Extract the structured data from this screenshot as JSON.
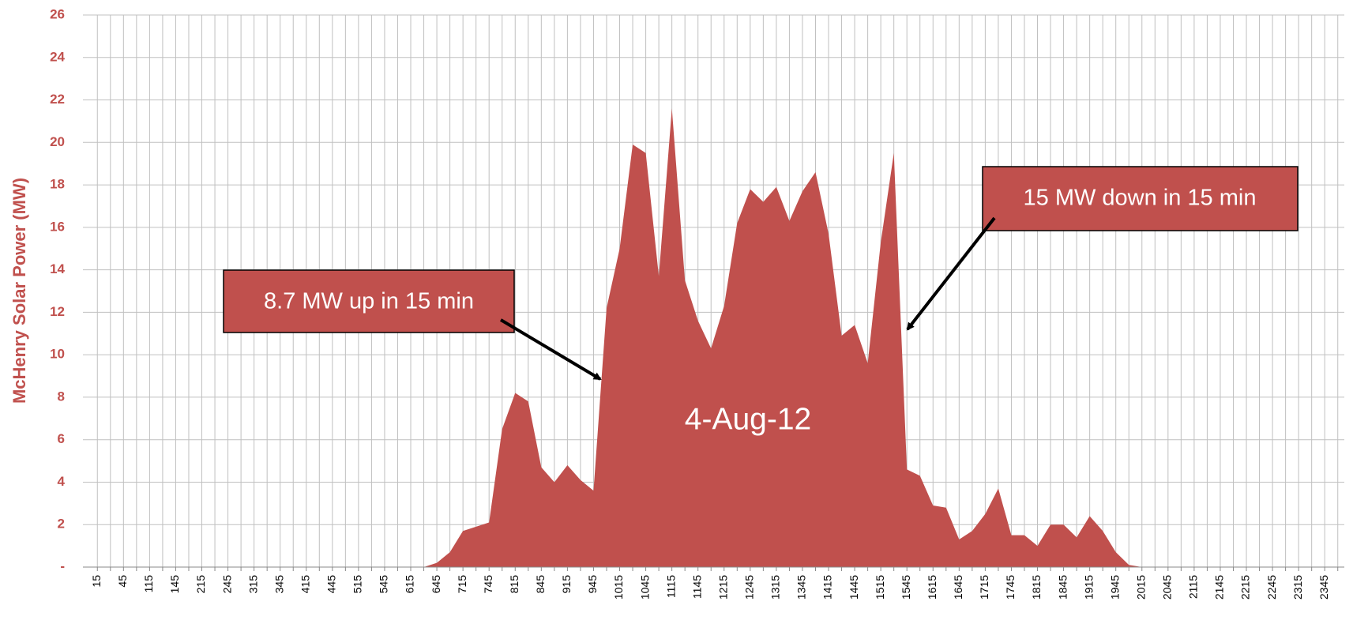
{
  "chart_data": {
    "type": "area",
    "ylabel": "McHenry Solar Power (MW)",
    "annotations": [
      "8.7 MW up in 15 min",
      "15 MW down in 15 min",
      "4-Aug-12"
    ],
    "categories": [
      "15",
      null,
      "45",
      null,
      "115",
      null,
      "145",
      null,
      "215",
      null,
      "245",
      null,
      "315",
      null,
      "345",
      null,
      "415",
      null,
      "445",
      null,
      "515",
      null,
      "545",
      null,
      "615",
      null,
      "645",
      null,
      "715",
      null,
      "745",
      null,
      "815",
      null,
      "845",
      null,
      "915",
      null,
      "945",
      null,
      "1015",
      null,
      "1045",
      null,
      "1115",
      null,
      "1145",
      null,
      "1215",
      null,
      "1245",
      null,
      "1315",
      null,
      "1345",
      null,
      "1415",
      null,
      "1445",
      null,
      "1515",
      null,
      "1545",
      null,
      "1615",
      null,
      "1645",
      null,
      "1715",
      null,
      "1745",
      null,
      "1815",
      null,
      "1845",
      null,
      "1915",
      null,
      "1945",
      null,
      "2015",
      null,
      "2045",
      null,
      "2115",
      null,
      "2145",
      null,
      "2215",
      null,
      "2245",
      null,
      "2315",
      null,
      "2345",
      null
    ],
    "values": [
      0,
      0,
      0,
      0,
      0,
      0,
      0,
      0,
      0,
      0,
      0,
      0,
      0,
      0,
      0,
      0,
      0,
      0,
      0,
      0,
      0,
      0,
      0,
      0,
      0,
      0,
      0.2,
      0.7,
      1.7,
      1.9,
      2.1,
      6.5,
      8.2,
      7.8,
      4.7,
      4.0,
      4.8,
      4.1,
      3.6,
      12.2,
      15.0,
      19.9,
      19.5,
      13.7,
      21.6,
      13.5,
      11.6,
      10.3,
      12.3,
      16.2,
      17.8,
      17.2,
      17.9,
      16.3,
      17.7,
      18.6,
      15.7,
      10.9,
      11.4,
      9.6,
      15.3,
      19.5,
      4.6,
      4.3,
      2.9,
      2.8,
      1.3,
      1.7,
      2.5,
      3.7,
      1.5,
      1.5,
      1.0,
      2.0,
      2.0,
      1.4,
      2.4,
      1.7,
      0.7,
      0.1,
      0,
      0,
      0,
      0,
      0,
      0,
      0,
      0,
      0,
      0,
      0,
      0,
      0,
      0,
      0,
      0
    ],
    "color": "#c0504d",
    "ylim": [
      0,
      26
    ],
    "yticks": [
      {
        "value": 0,
        "label": "-"
      },
      2,
      4,
      6,
      8,
      10,
      12,
      14,
      16,
      18,
      20,
      22,
      24,
      26
    ],
    "grid": true
  }
}
